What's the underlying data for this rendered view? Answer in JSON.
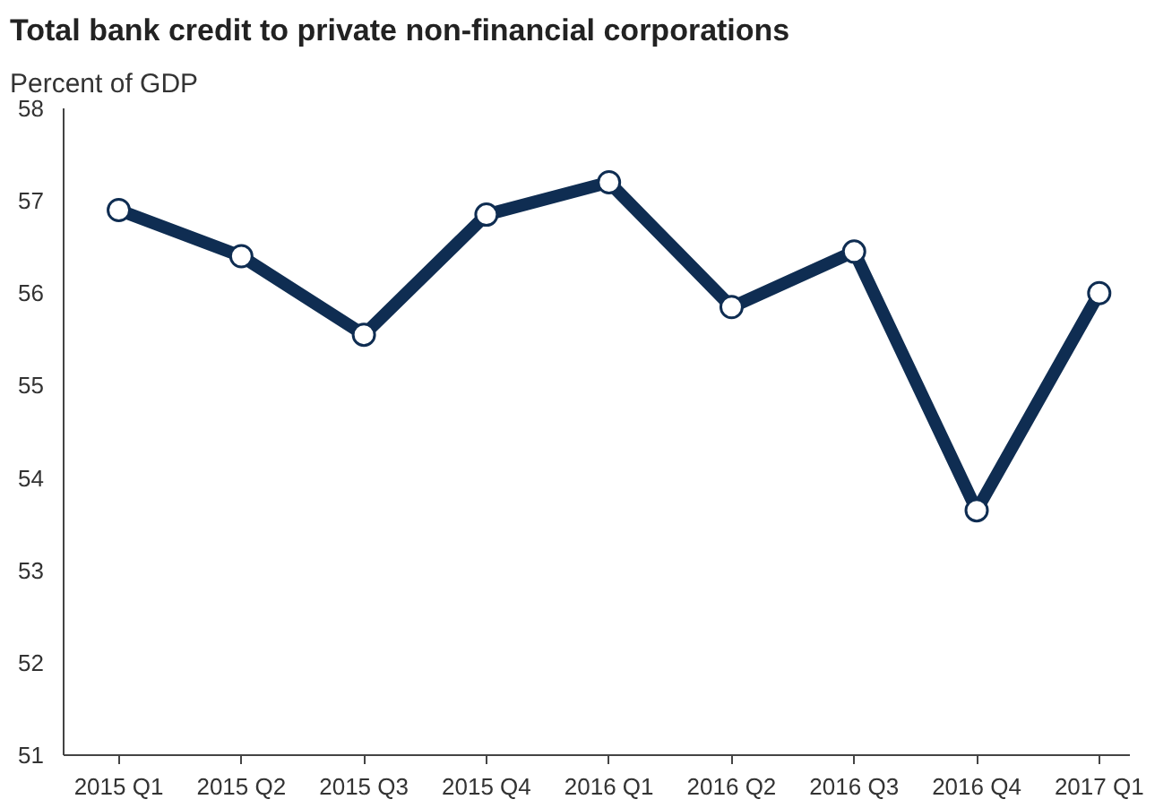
{
  "chart_data": {
    "type": "line",
    "title": "Total bank credit to private non-financial corporations",
    "ylabel": "Percent of GDP",
    "categories": [
      "2015 Q1",
      "2015 Q2",
      "2015 Q3",
      "2015 Q4",
      "2016 Q1",
      "2016 Q2",
      "2016 Q3",
      "2016 Q4",
      "2017 Q1"
    ],
    "series": [
      {
        "color": "#0f2d52",
        "values": [
          56.9,
          56.4,
          55.55,
          56.85,
          57.2,
          55.85,
          56.45,
          53.65,
          56.0
        ]
      }
    ],
    "ylim": [
      51,
      58
    ],
    "yticks": [
      51,
      52,
      53,
      54,
      55,
      56,
      57,
      58
    ],
    "grid": false,
    "marker": "circle",
    "line_style": "solid"
  }
}
